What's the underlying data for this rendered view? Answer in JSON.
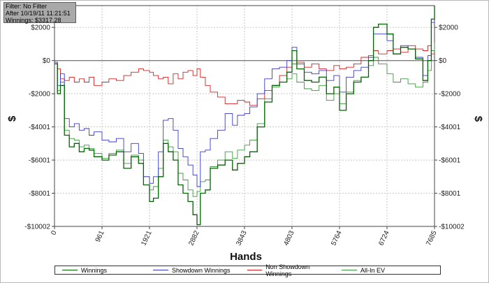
{
  "info": {
    "filter": "Filter: No Filter",
    "after": "After 10/19/11 11:21:51",
    "winnings": "Winnings: $3317.28"
  },
  "chart_data": {
    "type": "line",
    "xlabel": "Hands",
    "ylabel": "$",
    "xlim": [
      0,
      7685
    ],
    "ylim": [
      -10002,
      3317
    ],
    "x_ticks": [
      0,
      961,
      1921,
      2882,
      3843,
      4803,
      5764,
      6724,
      7685
    ],
    "x_tick_labels": [
      "0",
      "961",
      "1921",
      "2882",
      "3843",
      "4803",
      "5764",
      "6724",
      "7685"
    ],
    "y_ticks": [
      2000,
      0,
      -2000,
      -4001,
      -6001,
      -8001,
      -10002
    ],
    "y_tick_labels": [
      "$2000",
      "$0",
      "-$2000",
      "-$4001",
      "-$6001",
      "-$8001",
      "-$10002"
    ],
    "grid": true,
    "legend_position": "bottom",
    "series": [
      {
        "name": "Winnings",
        "color": "#006400",
        "x": [
          0,
          60,
          120,
          200,
          300,
          400,
          500,
          600,
          700,
          800,
          961,
          1100,
          1250,
          1400,
          1550,
          1700,
          1800,
          1921,
          2000,
          2100,
          2200,
          2300,
          2400,
          2500,
          2600,
          2700,
          2800,
          2882,
          2950,
          3050,
          3150,
          3300,
          3450,
          3600,
          3700,
          3843,
          3950,
          4100,
          4250,
          4400,
          4550,
          4700,
          4803,
          4900,
          5050,
          5200,
          5350,
          5500,
          5650,
          5764,
          5900,
          6050,
          6200,
          6350,
          6450,
          6550,
          6724,
          6850,
          7000,
          7150,
          7300,
          7450,
          7550,
          7620,
          7685
        ],
        "values": [
          -200,
          -2000,
          -1500,
          -4500,
          -5200,
          -5000,
          -5500,
          -5300,
          -5400,
          -5800,
          -6000,
          -5700,
          -5500,
          -6500,
          -5800,
          -6200,
          -7500,
          -8500,
          -8300,
          -7000,
          -5000,
          -5500,
          -6000,
          -7500,
          -8000,
          -8500,
          -9300,
          -9900,
          -8000,
          -7800,
          -6500,
          -6300,
          -6000,
          -6600,
          -6200,
          -5800,
          -5500,
          -4000,
          -2500,
          -1500,
          -1300,
          -700,
          600,
          -500,
          -1200,
          -1300,
          -1000,
          -2000,
          -1600,
          -3000,
          -2000,
          -1300,
          -1000,
          0,
          2000,
          2200,
          1600,
          400,
          800,
          700,
          100,
          -1200,
          0,
          2500,
          3300
        ]
      },
      {
        "name": "Showdown Winnings",
        "color": "#3838c8",
        "x": [
          0,
          60,
          120,
          200,
          300,
          400,
          500,
          600,
          700,
          800,
          961,
          1100,
          1250,
          1400,
          1550,
          1700,
          1800,
          1921,
          2000,
          2100,
          2200,
          2300,
          2400,
          2500,
          2600,
          2700,
          2800,
          2882,
          2950,
          3050,
          3150,
          3300,
          3450,
          3600,
          3700,
          3843,
          3950,
          4100,
          4250,
          4400,
          4550,
          4700,
          4803,
          4900,
          5050,
          5200,
          5350,
          5500,
          5650,
          5764,
          5900,
          6050,
          6200,
          6350,
          6450,
          6550,
          6724,
          6850,
          7000,
          7150,
          7300,
          7450,
          7550,
          7620,
          7685
        ],
        "values": [
          -100,
          -1500,
          -800,
          -3500,
          -4000,
          -3800,
          -4200,
          -4100,
          -4500,
          -4300,
          -4800,
          -4900,
          -4700,
          -5500,
          -5000,
          -5600,
          -7000,
          -7400,
          -7000,
          -5500,
          -3600,
          -3500,
          -4200,
          -5300,
          -5800,
          -6300,
          -6900,
          -7600,
          -5500,
          -5400,
          -4700,
          -4200,
          -3200,
          -3900,
          -3300,
          -3200,
          -2800,
          -2000,
          -1100,
          -500,
          -400,
          0,
          800,
          -200,
          -700,
          -800,
          -600,
          -1200,
          -900,
          -1900,
          -1000,
          -600,
          -400,
          200,
          1600,
          1600,
          1200,
          400,
          900,
          700,
          200,
          -900,
          300,
          2300,
          3000
        ]
      },
      {
        "name": "Non Showdown Winnings",
        "color": "#d42020",
        "x": [
          0,
          60,
          120,
          200,
          300,
          400,
          500,
          600,
          700,
          800,
          961,
          1100,
          1250,
          1400,
          1550,
          1700,
          1800,
          1921,
          2000,
          2100,
          2200,
          2300,
          2400,
          2500,
          2600,
          2700,
          2800,
          2882,
          2950,
          3050,
          3150,
          3300,
          3450,
          3600,
          3700,
          3843,
          3950,
          4100,
          4250,
          4400,
          4550,
          4700,
          4803,
          4900,
          5050,
          5200,
          5350,
          5500,
          5650,
          5764,
          5900,
          6050,
          6200,
          6350,
          6450,
          6550,
          6724,
          6850,
          7000,
          7150,
          7300,
          7450,
          7550,
          7620,
          7685
        ],
        "values": [
          -100,
          -500,
          -1100,
          -1200,
          -1000,
          -1300,
          -1100,
          -1300,
          -1000,
          -1500,
          -1300,
          -1100,
          -1200,
          -900,
          -700,
          -500,
          -600,
          -700,
          -900,
          -1100,
          -1000,
          -1400,
          -800,
          -1100,
          -700,
          -600,
          -900,
          -500,
          -1000,
          -1500,
          -1900,
          -2200,
          -2600,
          -2600,
          -2400,
          -2500,
          -2700,
          -2300,
          -1800,
          -1500,
          -900,
          -400,
          -200,
          -100,
          -400,
          -200,
          -500,
          -600,
          -300,
          -500,
          -400,
          -200,
          200,
          300,
          600,
          400,
          600,
          700,
          500,
          900,
          700,
          600,
          900,
          400,
          300
        ]
      },
      {
        "name": "All-In EV",
        "color": "#3a9a3a",
        "x": [
          0,
          60,
          120,
          200,
          300,
          400,
          500,
          600,
          700,
          800,
          961,
          1100,
          1250,
          1400,
          1550,
          1700,
          1800,
          1921,
          2000,
          2100,
          2200,
          2300,
          2400,
          2500,
          2600,
          2700,
          2800,
          2882,
          2950,
          3050,
          3150,
          3300,
          3450,
          3600,
          3700,
          3843,
          3950,
          4100,
          4250,
          4400,
          4550,
          4700,
          4803,
          4900,
          5050,
          5200,
          5350,
          5500,
          5650,
          5764,
          5900,
          6050,
          6200,
          6350,
          6450,
          6550,
          6724,
          6850,
          7000,
          7150,
          7300,
          7450,
          7550,
          7620,
          7685
        ],
        "values": [
          -200,
          -1800,
          -1300,
          -4200,
          -4700,
          -4800,
          -5200,
          -5100,
          -5300,
          -5600,
          -5900,
          -5600,
          -5400,
          -6200,
          -5700,
          -6000,
          -7000,
          -7800,
          -7600,
          -6500,
          -4800,
          -5200,
          -5500,
          -6800,
          -7200,
          -7800,
          -8200,
          -7900,
          -7300,
          -7200,
          -6400,
          -6000,
          -5500,
          -5900,
          -5400,
          -5100,
          -4800,
          -3800,
          -2300,
          -1600,
          -1300,
          -1100,
          -800,
          -1300,
          -1700,
          -1800,
          -1500,
          -2400,
          -2000,
          -2600,
          -1900,
          -1200,
          -1000,
          -300,
          200,
          -200,
          -800,
          -1300,
          -1100,
          -1400,
          -1600,
          -1300,
          -600,
          600,
          1100
        ]
      }
    ]
  }
}
